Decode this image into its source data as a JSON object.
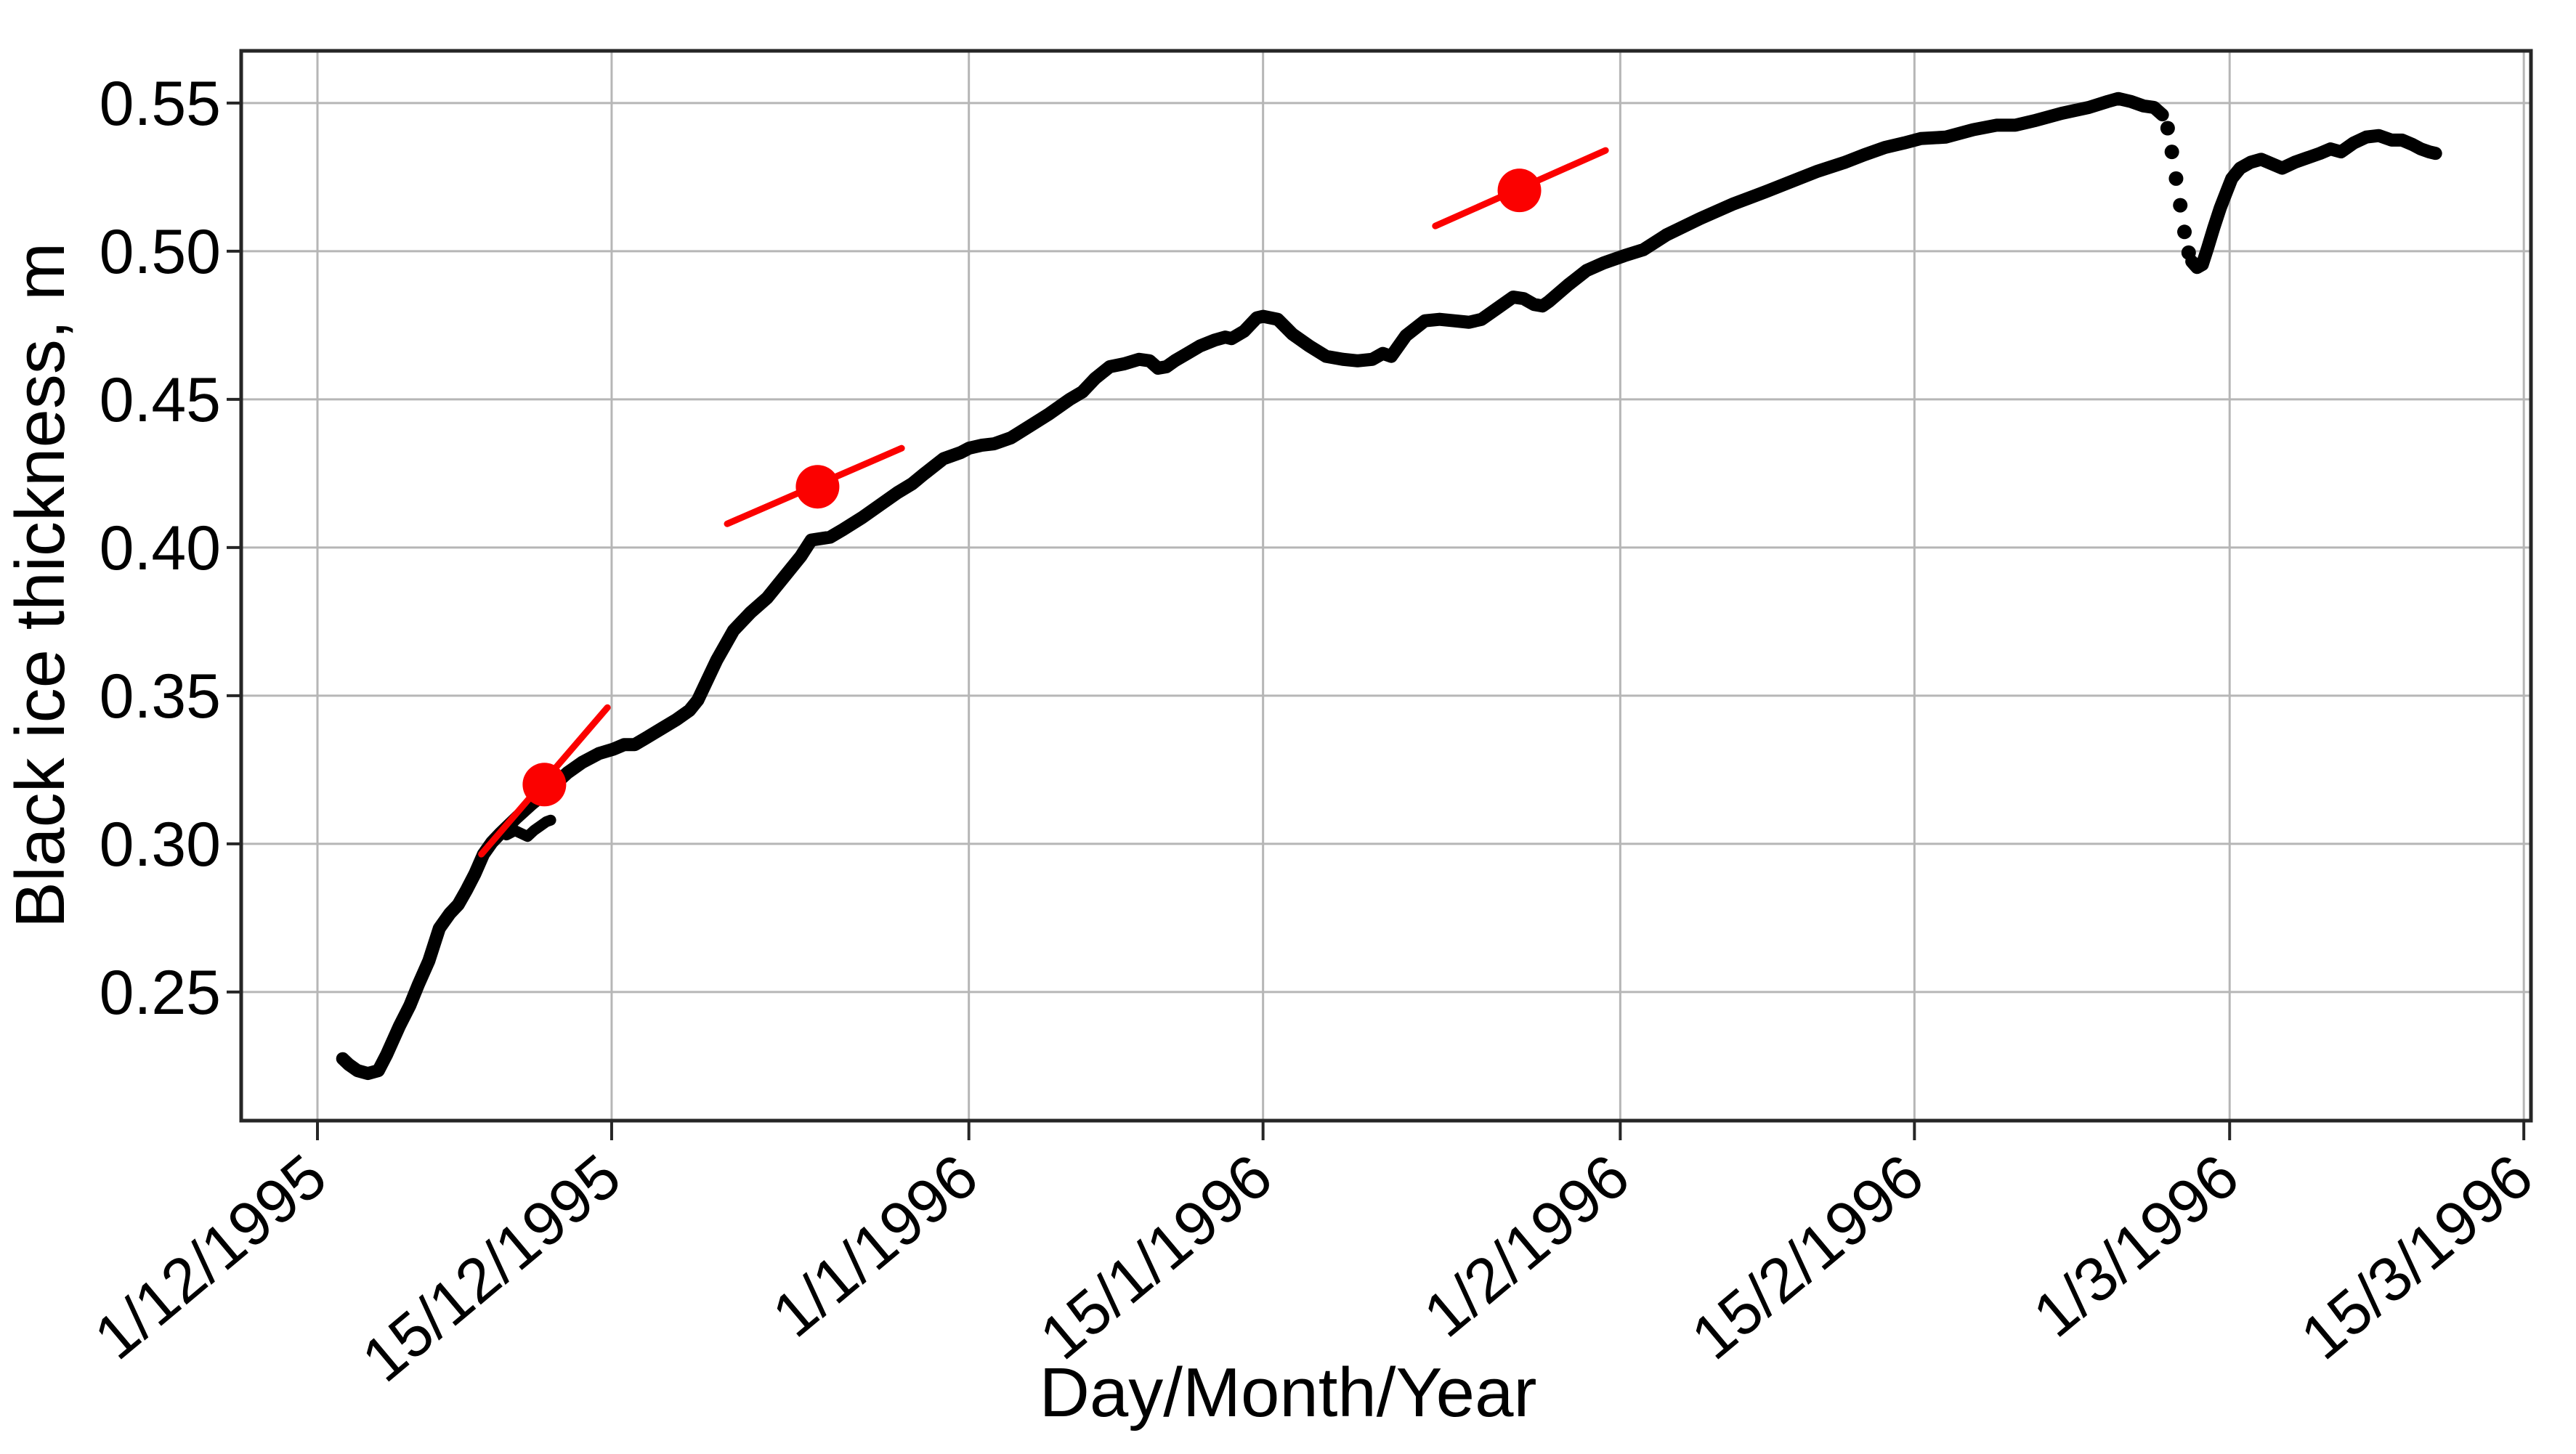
{
  "chart_data": {
    "type": "scatter",
    "title": "",
    "xlabel": "Day/Month/Year",
    "ylabel": "Black ice thickness, m",
    "grid": true,
    "x_axis": {
      "epoch_label": "1/12/1995",
      "ticks": [
        {
          "label": "1/12/1995",
          "day": 0
        },
        {
          "label": "15/12/1995",
          "day": 14
        },
        {
          "label": "1/1/1996",
          "day": 31
        },
        {
          "label": "15/1/1996",
          "day": 45
        },
        {
          "label": "1/2/1996",
          "day": 62
        },
        {
          "label": "15/2/1996",
          "day": 76
        },
        {
          "label": "1/3/1996",
          "day": 91
        },
        {
          "label": "15/3/1996",
          "day": 105
        }
      ],
      "range_days": [
        -3.63,
        105.34
      ]
    },
    "y_axis": {
      "ticks": [
        "0.25",
        "0.30",
        "0.35",
        "0.40",
        "0.45",
        "0.50",
        "0.55"
      ],
      "tick_values": [
        0.25,
        0.3,
        0.35,
        0.4,
        0.45,
        0.5,
        0.55
      ],
      "range": [
        0.2066,
        0.5676
      ]
    },
    "main_series": {
      "name": "black ice thickness",
      "color": "#000000",
      "segments": [
        [
          [
            1.2,
            0.2275
          ],
          [
            1.5,
            0.2255
          ],
          [
            1.9,
            0.2235
          ],
          [
            2.4,
            0.2225
          ],
          [
            2.9,
            0.2235
          ],
          [
            3.3,
            0.229
          ],
          [
            3.9,
            0.2385
          ],
          [
            4.4,
            0.2455
          ],
          [
            4.8,
            0.2525
          ],
          [
            5.3,
            0.2605
          ],
          [
            5.8,
            0.2715
          ],
          [
            6.3,
            0.2765
          ],
          [
            6.7,
            0.2795
          ],
          [
            7.1,
            0.2845
          ],
          [
            7.5,
            0.29
          ],
          [
            7.9,
            0.2965
          ],
          [
            8.3,
            0.3005
          ],
          [
            8.7,
            0.3035
          ],
          [
            9.5,
            0.309
          ],
          [
            10.2,
            0.3135
          ],
          [
            10.9,
            0.3175
          ],
          [
            11.9,
            0.324
          ],
          [
            12.6,
            0.3275
          ],
          [
            13.4,
            0.3305
          ],
          [
            14.1,
            0.332
          ],
          [
            14.6,
            0.3335
          ],
          [
            15.1,
            0.3335
          ],
          [
            15.7,
            0.336
          ],
          [
            16.4,
            0.339
          ],
          [
            17.1,
            0.342
          ],
          [
            17.7,
            0.345
          ],
          [
            18.1,
            0.3485
          ],
          [
            18.5,
            0.3545
          ],
          [
            19.0,
            0.362
          ],
          [
            19.8,
            0.372
          ],
          [
            20.6,
            0.378
          ],
          [
            21.4,
            0.383
          ],
          [
            22.2,
            0.39
          ],
          [
            23.0,
            0.397
          ],
          [
            23.5,
            0.4025
          ],
          [
            24.4,
            0.4035
          ],
          [
            25.0,
            0.406
          ],
          [
            25.9,
            0.41
          ],
          [
            26.8,
            0.4145
          ],
          [
            27.6,
            0.4185
          ],
          [
            28.3,
            0.4215
          ],
          [
            28.9,
            0.425
          ],
          [
            29.8,
            0.43
          ],
          [
            30.6,
            0.432
          ],
          [
            31.0,
            0.4335
          ],
          [
            31.6,
            0.4345
          ],
          [
            32.2,
            0.435
          ],
          [
            33.0,
            0.437
          ],
          [
            33.9,
            0.441
          ],
          [
            34.8,
            0.445
          ],
          [
            35.8,
            0.45
          ],
          [
            36.4,
            0.4525
          ],
          [
            37.0,
            0.457
          ],
          [
            37.7,
            0.461
          ],
          [
            38.4,
            0.462
          ],
          [
            39.1,
            0.4635
          ],
          [
            39.6,
            0.463
          ],
          [
            40.0,
            0.4605
          ],
          [
            40.4,
            0.461
          ],
          [
            40.8,
            0.463
          ],
          [
            41.4,
            0.4655
          ],
          [
            42.0,
            0.468
          ],
          [
            42.7,
            0.47
          ],
          [
            43.2,
            0.471
          ],
          [
            43.5,
            0.4705
          ],
          [
            44.1,
            0.473
          ],
          [
            44.7,
            0.4775
          ],
          [
            45.0,
            0.478
          ],
          [
            45.7,
            0.477
          ],
          [
            46.4,
            0.472
          ],
          [
            47.2,
            0.468
          ],
          [
            48.0,
            0.4645
          ],
          [
            48.8,
            0.4635
          ],
          [
            49.5,
            0.463
          ],
          [
            50.2,
            0.4635
          ],
          [
            50.7,
            0.4655
          ],
          [
            51.1,
            0.4645
          ],
          [
            51.8,
            0.4715
          ],
          [
            52.7,
            0.4765
          ],
          [
            53.4,
            0.477
          ],
          [
            54.1,
            0.4765
          ],
          [
            54.8,
            0.476
          ],
          [
            55.4,
            0.477
          ],
          [
            56.2,
            0.481
          ],
          [
            56.9,
            0.4845
          ],
          [
            57.4,
            0.484
          ],
          [
            57.9,
            0.482
          ],
          [
            58.3,
            0.4815
          ],
          [
            58.6,
            0.483
          ],
          [
            59.5,
            0.4885
          ],
          [
            60.4,
            0.4935
          ],
          [
            61.2,
            0.496
          ],
          [
            62.2,
            0.4985
          ],
          [
            63.1,
            0.5005
          ],
          [
            64.2,
            0.5055
          ],
          [
            65.8,
            0.511
          ],
          [
            67.4,
            0.516
          ],
          [
            68.9,
            0.52
          ],
          [
            70.5,
            0.5245
          ],
          [
            71.4,
            0.527
          ],
          [
            72.7,
            0.53
          ],
          [
            73.6,
            0.5325
          ],
          [
            74.6,
            0.535
          ],
          [
            75.5,
            0.5365
          ],
          [
            76.3,
            0.538
          ],
          [
            77.5,
            0.5385
          ],
          [
            78.8,
            0.541
          ],
          [
            79.9,
            0.5425
          ],
          [
            80.8,
            0.5425
          ],
          [
            81.7,
            0.544
          ],
          [
            83.0,
            0.5465
          ],
          [
            84.3,
            0.5485
          ],
          [
            85.2,
            0.5505
          ],
          [
            85.7,
            0.5515
          ],
          [
            86.3,
            0.5505
          ],
          [
            86.9,
            0.549
          ],
          [
            87.4,
            0.5485
          ],
          [
            87.8,
            0.546
          ]
        ],
        [
          [
            89.2,
            0.4965
          ],
          [
            89.45,
            0.4945
          ],
          [
            89.7,
            0.4955
          ],
          [
            89.95,
            0.501
          ],
          [
            90.25,
            0.508
          ],
          [
            90.55,
            0.5145
          ],
          [
            90.85,
            0.52
          ],
          [
            91.1,
            0.5245
          ],
          [
            91.5,
            0.528
          ],
          [
            92.0,
            0.53
          ],
          [
            92.5,
            0.531
          ],
          [
            93.0,
            0.5295
          ],
          [
            93.5,
            0.528
          ],
          [
            94.1,
            0.53
          ],
          [
            94.7,
            0.5315
          ],
          [
            95.3,
            0.533
          ],
          [
            95.8,
            0.5345
          ],
          [
            96.3,
            0.5335
          ],
          [
            96.9,
            0.5365
          ],
          [
            97.5,
            0.5385
          ],
          [
            98.1,
            0.539
          ],
          [
            98.7,
            0.5375
          ],
          [
            99.2,
            0.5375
          ],
          [
            99.7,
            0.536
          ],
          [
            100.1,
            0.5345
          ],
          [
            100.5,
            0.5335
          ],
          [
            100.8,
            0.533
          ]
        ]
      ],
      "gap_dots": [
        [
          88.05,
          0.5415
        ],
        [
          88.25,
          0.5335
        ],
        [
          88.45,
          0.5245
        ],
        [
          88.65,
          0.5155
        ],
        [
          88.85,
          0.5065
        ],
        [
          89.05,
          0.4995
        ]
      ]
    },
    "secondary_trace": {
      "name": "short overlapping trace",
      "color": "#000000",
      "points": [
        [
          9.0,
          0.303
        ],
        [
          9.4,
          0.3045
        ],
        [
          9.7,
          0.3035
        ],
        [
          10.0,
          0.3025
        ],
        [
          10.3,
          0.3045
        ],
        [
          10.6,
          0.306
        ],
        [
          10.9,
          0.3075
        ],
        [
          11.1,
          0.308
        ]
      ]
    },
    "annotations": {
      "color": "#fb0100",
      "slope_markers": [
        {
          "day": 10.8,
          "value": 0.32
        },
        {
          "day": 23.8,
          "value": 0.4205
        },
        {
          "day": 57.2,
          "value": 0.5205
        }
      ],
      "slope_lines": [
        {
          "from": [
            7.8,
            0.2965
          ],
          "to": [
            13.8,
            0.346
          ]
        },
        {
          "from": [
            19.5,
            0.408
          ],
          "to": [
            27.8,
            0.4335
          ]
        },
        {
          "from": [
            53.2,
            0.5085
          ],
          "to": [
            61.3,
            0.534
          ]
        }
      ]
    },
    "colors": {
      "curve": "#000000",
      "annotation_red": "#fb0100",
      "gridline": "#b6b6b6",
      "frame": "#262626",
      "background": "#ffffff"
    }
  }
}
